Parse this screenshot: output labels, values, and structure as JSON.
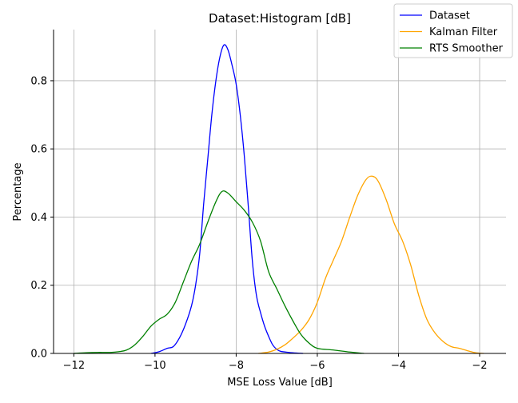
{
  "chart_data": {
    "type": "line",
    "title": "Dataset:Histogram [dB]",
    "xlabel": "MSE Loss Value [dB]",
    "ylabel": "Percentage",
    "xlim": [
      -12.5,
      -1.35
    ],
    "ylim": [
      0,
      0.95
    ],
    "xticks": [
      -12,
      -10,
      -8,
      -6,
      -4,
      -2
    ],
    "xtick_labels": [
      "−12",
      "−10",
      "−8",
      "−6",
      "−4",
      "−2"
    ],
    "yticks": [
      0.0,
      0.2,
      0.4,
      0.6,
      0.8
    ],
    "ytick_labels": [
      "0.0",
      "0.2",
      "0.4",
      "0.6",
      "0.8"
    ],
    "grid": true,
    "legend_position": "top-right",
    "series": [
      {
        "name": "Dataset",
        "color": "#0000ff",
        "x": [
          -10.1,
          -9.9,
          -9.7,
          -9.55,
          -9.4,
          -9.25,
          -9.1,
          -9.0,
          -8.9,
          -8.8,
          -8.7,
          -8.6,
          -8.5,
          -8.4,
          -8.3,
          -8.2,
          -8.1,
          -8.0,
          -7.9,
          -7.8,
          -7.7,
          -7.6,
          -7.5,
          -7.4,
          -7.3,
          -7.2,
          -7.1,
          -7.0,
          -6.9,
          -6.7,
          -6.5,
          -6.35
        ],
        "values": [
          0.0,
          0.005,
          0.015,
          0.02,
          0.045,
          0.085,
          0.14,
          0.2,
          0.29,
          0.44,
          0.57,
          0.7,
          0.8,
          0.87,
          0.905,
          0.89,
          0.845,
          0.79,
          0.7,
          0.58,
          0.43,
          0.27,
          0.17,
          0.12,
          0.08,
          0.05,
          0.025,
          0.012,
          0.006,
          0.003,
          0.001,
          0.0
        ]
      },
      {
        "name": "Kalman Filter",
        "color": "#ffa500",
        "x": [
          -7.45,
          -7.2,
          -7.0,
          -6.8,
          -6.6,
          -6.4,
          -6.2,
          -6.0,
          -5.8,
          -5.6,
          -5.4,
          -5.2,
          -5.0,
          -4.8,
          -4.65,
          -4.5,
          -4.3,
          -4.1,
          -3.9,
          -3.7,
          -3.5,
          -3.3,
          -3.1,
          -2.9,
          -2.7,
          -2.5,
          -2.3,
          -2.1,
          -1.9
        ],
        "values": [
          0.0,
          0.004,
          0.012,
          0.025,
          0.045,
          0.068,
          0.1,
          0.15,
          0.22,
          0.275,
          0.33,
          0.4,
          0.465,
          0.51,
          0.52,
          0.505,
          0.45,
          0.38,
          0.33,
          0.26,
          0.17,
          0.1,
          0.06,
          0.035,
          0.02,
          0.015,
          0.008,
          0.002,
          0.0
        ]
      },
      {
        "name": "RTS Smoother",
        "color": "#008000",
        "x": [
          -12.0,
          -11.7,
          -11.4,
          -11.1,
          -10.9,
          -10.7,
          -10.5,
          -10.3,
          -10.1,
          -9.9,
          -9.7,
          -9.5,
          -9.3,
          -9.1,
          -8.9,
          -8.7,
          -8.5,
          -8.35,
          -8.2,
          -8.0,
          -7.8,
          -7.6,
          -7.4,
          -7.2,
          -7.0,
          -6.8,
          -6.6,
          -6.4,
          -6.2,
          -6.0,
          -5.6,
          -5.2,
          -4.85
        ],
        "values": [
          0.0,
          0.002,
          0.003,
          0.003,
          0.005,
          0.01,
          0.025,
          0.05,
          0.08,
          0.1,
          0.115,
          0.15,
          0.21,
          0.27,
          0.32,
          0.385,
          0.445,
          0.475,
          0.47,
          0.445,
          0.42,
          0.385,
          0.33,
          0.24,
          0.19,
          0.14,
          0.095,
          0.055,
          0.03,
          0.015,
          0.01,
          0.004,
          0.0
        ]
      }
    ]
  }
}
